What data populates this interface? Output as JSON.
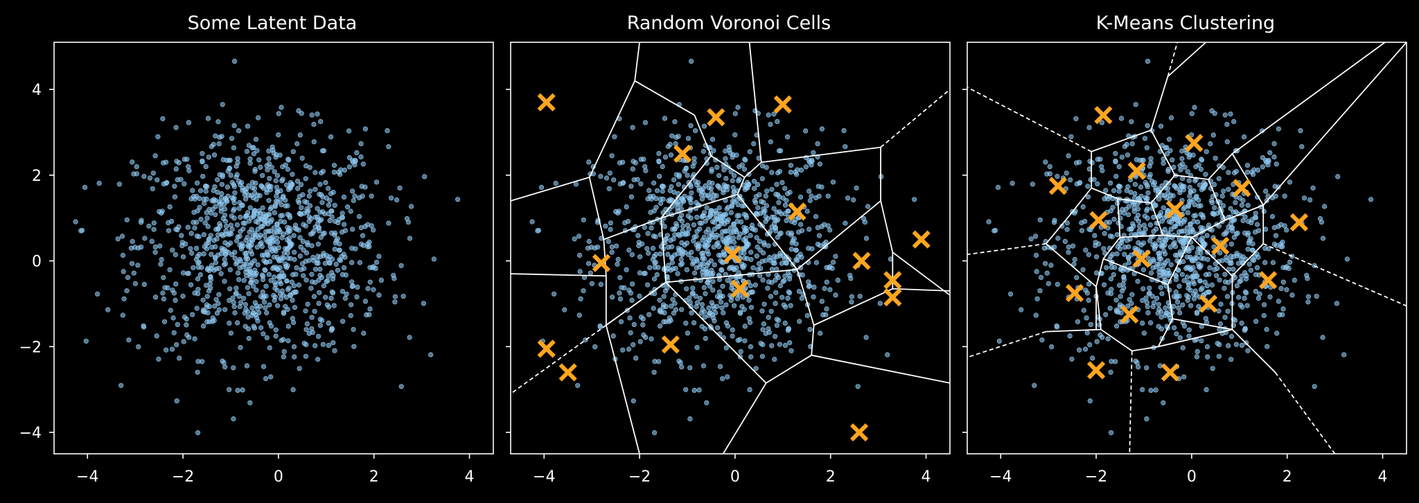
{
  "chart_data": [
    {
      "type": "scatter",
      "title": "Some Latent Data",
      "xlim": [
        -4.7,
        4.5
      ],
      "ylim": [
        -4.5,
        5.1
      ],
      "xticks": [
        -4,
        -2,
        0,
        2,
        4
      ],
      "yticks": [
        -4,
        -2,
        0,
        2,
        4
      ],
      "xtick_labels": [
        "−4",
        "−2",
        "0",
        "2",
        "4"
      ],
      "ytick_labels": [
        "−4",
        "−2",
        "0",
        "2",
        "4"
      ],
      "show_ytick_labels": true,
      "point_color": "#8fc8f0",
      "center_color": "#ffa51f",
      "centers": [],
      "solid_edges": [],
      "dashed_edges": []
    },
    {
      "type": "scatter",
      "title": "Random Voronoi Cells",
      "xlim": [
        -4.7,
        4.5
      ],
      "ylim": [
        -4.5,
        5.1
      ],
      "xticks": [
        -4,
        -2,
        0,
        2,
        4
      ],
      "yticks": [
        -4,
        -2,
        0,
        2,
        4
      ],
      "xtick_labels": [
        "−4",
        "−2",
        "0",
        "2",
        "4"
      ],
      "ytick_labels": [],
      "show_ytick_labels": false,
      "point_color": "#8fc8f0",
      "center_color": "#ffa51f",
      "centers": [
        [
          -3.95,
          3.7
        ],
        [
          -0.4,
          3.35
        ],
        [
          1.0,
          3.65
        ],
        [
          -1.1,
          2.5
        ],
        [
          1.3,
          1.15
        ],
        [
          -2.8,
          -0.05
        ],
        [
          -0.05,
          0.15
        ],
        [
          0.1,
          -0.65
        ],
        [
          2.65,
          0.0
        ],
        [
          3.9,
          0.5
        ],
        [
          3.3,
          -0.45
        ],
        [
          3.3,
          -0.85
        ],
        [
          -3.95,
          -2.05
        ],
        [
          -3.5,
          -2.6
        ],
        [
          -1.35,
          -1.95
        ],
        [
          2.6,
          -4.0
        ]
      ],
      "solid_edges": [
        [
          [
            -2.0,
            5.1
          ],
          [
            -2.1,
            4.2
          ]
        ],
        [
          [
            -2.1,
            4.2
          ],
          [
            -0.85,
            3.4
          ]
        ],
        [
          [
            -2.1,
            4.2
          ],
          [
            -3.05,
            1.95
          ]
        ],
        [
          [
            -3.05,
            1.95
          ],
          [
            -4.7,
            1.4
          ]
        ],
        [
          [
            -3.05,
            1.95
          ],
          [
            -2.75,
            0.5
          ]
        ],
        [
          [
            -0.85,
            3.4
          ],
          [
            -0.5,
            2.45
          ]
        ],
        [
          [
            0.3,
            5.1
          ],
          [
            0.55,
            2.3
          ]
        ],
        [
          [
            0.55,
            2.3
          ],
          [
            3.05,
            2.65
          ]
        ],
        [
          [
            0.55,
            2.3
          ],
          [
            0.2,
            1.95
          ]
        ],
        [
          [
            -0.5,
            2.45
          ],
          [
            0.2,
            1.95
          ]
        ],
        [
          [
            -0.5,
            2.45
          ],
          [
            -1.55,
            1.0
          ]
        ],
        [
          [
            0.2,
            1.95
          ],
          [
            0.05,
            1.55
          ]
        ],
        [
          [
            0.05,
            1.55
          ],
          [
            -1.55,
            1.0
          ]
        ],
        [
          [
            0.05,
            1.55
          ],
          [
            1.3,
            -0.2
          ]
        ],
        [
          [
            -1.55,
            1.0
          ],
          [
            -2.75,
            0.5
          ]
        ],
        [
          [
            -1.55,
            1.0
          ],
          [
            -1.45,
            -0.5
          ]
        ],
        [
          [
            -2.75,
            0.5
          ],
          [
            -2.7,
            -0.35
          ]
        ],
        [
          [
            -2.7,
            -0.35
          ],
          [
            -4.7,
            -0.3
          ]
        ],
        [
          [
            -2.7,
            -0.35
          ],
          [
            -2.7,
            -1.5
          ]
        ],
        [
          [
            -2.7,
            -1.5
          ],
          [
            -1.45,
            -0.5
          ]
        ],
        [
          [
            -1.45,
            -0.5
          ],
          [
            1.3,
            -0.2
          ]
        ],
        [
          [
            1.3,
            -0.2
          ],
          [
            1.65,
            -1.5
          ]
        ],
        [
          [
            1.3,
            -0.2
          ],
          [
            3.05,
            1.4
          ]
        ],
        [
          [
            3.05,
            2.65
          ],
          [
            3.05,
            1.4
          ]
        ],
        [
          [
            3.05,
            1.4
          ],
          [
            3.3,
            0.2
          ]
        ],
        [
          [
            3.3,
            0.2
          ],
          [
            4.5,
            -0.8
          ]
        ],
        [
          [
            3.3,
            0.2
          ],
          [
            3.3,
            -0.65
          ]
        ],
        [
          [
            3.3,
            -0.65
          ],
          [
            4.5,
            -0.7
          ]
        ],
        [
          [
            3.3,
            -0.65
          ],
          [
            1.65,
            -1.5
          ]
        ],
        [
          [
            1.65,
            -1.5
          ],
          [
            1.6,
            -2.2
          ]
        ],
        [
          [
            -2.7,
            -1.5
          ],
          [
            -1.45,
            -0.5
          ]
        ],
        [
          [
            -2.7,
            -1.5
          ],
          [
            -2.0,
            -4.5
          ]
        ],
        [
          [
            1.6,
            -2.2
          ],
          [
            0.65,
            -2.85
          ]
        ],
        [
          [
            1.6,
            -2.2
          ],
          [
            4.5,
            -2.85
          ]
        ],
        [
          [
            0.65,
            -2.85
          ],
          [
            -0.25,
            -4.5
          ]
        ],
        [
          [
            0.65,
            -2.85
          ],
          [
            -1.45,
            -0.5
          ]
        ]
      ],
      "dashed_edges": [
        [
          [
            3.05,
            2.65
          ],
          [
            4.5,
            4.0
          ]
        ],
        [
          [
            -2.7,
            -1.5
          ],
          [
            -4.7,
            -3.1
          ]
        ]
      ]
    },
    {
      "type": "scatter",
      "title": "K-Means Clustering",
      "xlim": [
        -4.7,
        4.5
      ],
      "ylim": [
        -4.5,
        5.1
      ],
      "xticks": [
        -4,
        -2,
        0,
        2,
        4
      ],
      "yticks": [
        -4,
        -2,
        0,
        2,
        4
      ],
      "xtick_labels": [
        "−4",
        "−2",
        "0",
        "2",
        "4"
      ],
      "ytick_labels": [],
      "show_ytick_labels": false,
      "point_color": "#8fc8f0",
      "center_color": "#ffa51f",
      "centers": [
        [
          -1.85,
          3.4
        ],
        [
          0.05,
          2.75
        ],
        [
          -1.15,
          2.1
        ],
        [
          -2.8,
          1.75
        ],
        [
          1.05,
          1.7
        ],
        [
          -1.95,
          0.95
        ],
        [
          -0.35,
          1.2
        ],
        [
          2.25,
          0.9
        ],
        [
          0.6,
          0.35
        ],
        [
          -1.05,
          0.05
        ],
        [
          -2.45,
          -0.75
        ],
        [
          1.6,
          -0.45
        ],
        [
          -1.3,
          -1.25
        ],
        [
          0.35,
          -1.0
        ],
        [
          -2.0,
          -2.55
        ],
        [
          -0.45,
          -2.6
        ]
      ],
      "solid_edges": [
        [
          [
            -2.1,
            2.55
          ],
          [
            -0.85,
            3.05
          ]
        ],
        [
          [
            -0.85,
            3.05
          ],
          [
            -0.5,
            4.3
          ]
        ],
        [
          [
            -0.5,
            4.3
          ],
          [
            0.3,
            5.1
          ]
        ],
        [
          [
            -0.85,
            3.05
          ],
          [
            -0.35,
            2.0
          ]
        ],
        [
          [
            -0.35,
            2.0
          ],
          [
            0.35,
            1.9
          ]
        ],
        [
          [
            0.35,
            1.9
          ],
          [
            0.85,
            2.5
          ]
        ],
        [
          [
            0.85,
            2.5
          ],
          [
            4.05,
            5.1
          ]
        ],
        [
          [
            0.85,
            2.5
          ],
          [
            1.5,
            1.3
          ]
        ],
        [
          [
            1.5,
            1.3
          ],
          [
            4.5,
            5.1
          ]
        ],
        [
          [
            1.5,
            1.3
          ],
          [
            0.7,
            0.95
          ]
        ],
        [
          [
            0.35,
            1.9
          ],
          [
            0.7,
            0.95
          ]
        ],
        [
          [
            0.7,
            0.95
          ],
          [
            0.0,
            0.55
          ]
        ],
        [
          [
            -0.35,
            2.0
          ],
          [
            -0.85,
            1.35
          ]
        ],
        [
          [
            -0.85,
            1.35
          ],
          [
            -1.55,
            1.45
          ]
        ],
        [
          [
            -1.55,
            1.45
          ],
          [
            -2.1,
            1.7
          ]
        ],
        [
          [
            -2.1,
            2.55
          ],
          [
            -2.1,
            1.7
          ]
        ],
        [
          [
            -2.1,
            1.7
          ],
          [
            -2.6,
            1.0
          ]
        ],
        [
          [
            -2.6,
            1.0
          ],
          [
            -3.05,
            0.4
          ]
        ],
        [
          [
            -1.55,
            1.45
          ],
          [
            -1.5,
            0.55
          ]
        ],
        [
          [
            -0.85,
            1.35
          ],
          [
            -0.6,
            0.6
          ]
        ],
        [
          [
            -0.6,
            0.6
          ],
          [
            0.0,
            0.55
          ]
        ],
        [
          [
            -0.6,
            0.6
          ],
          [
            -1.5,
            0.55
          ]
        ],
        [
          [
            -1.5,
            0.55
          ],
          [
            -1.85,
            0.05
          ]
        ],
        [
          [
            -1.85,
            0.05
          ],
          [
            -2.0,
            -0.6
          ]
        ],
        [
          [
            -1.85,
            0.05
          ],
          [
            -0.5,
            -0.55
          ]
        ],
        [
          [
            0.0,
            0.55
          ],
          [
            -0.5,
            -0.55
          ]
        ],
        [
          [
            -0.5,
            -0.55
          ],
          [
            -0.4,
            -1.35
          ]
        ],
        [
          [
            -0.4,
            -1.35
          ],
          [
            -0.7,
            -2.0
          ]
        ],
        [
          [
            -2.0,
            -0.6
          ],
          [
            -1.9,
            -1.6
          ]
        ],
        [
          [
            -1.9,
            -1.6
          ],
          [
            -1.25,
            -2.1
          ]
        ],
        [
          [
            -1.25,
            -2.1
          ],
          [
            -0.7,
            -2.0
          ]
        ],
        [
          [
            -0.4,
            -1.35
          ],
          [
            0.85,
            -1.6
          ]
        ],
        [
          [
            0.0,
            0.55
          ],
          [
            0.85,
            -0.35
          ]
        ],
        [
          [
            0.85,
            -0.35
          ],
          [
            0.85,
            -1.6
          ]
        ],
        [
          [
            0.85,
            -1.6
          ],
          [
            1.75,
            -2.6
          ]
        ],
        [
          [
            0.85,
            -1.6
          ],
          [
            -0.7,
            -2.0
          ]
        ],
        [
          [
            1.5,
            1.3
          ],
          [
            1.5,
            0.4
          ]
        ],
        [
          [
            1.5,
            0.4
          ],
          [
            0.85,
            -0.35
          ]
        ],
        [
          [
            -1.9,
            -1.6
          ],
          [
            -3.05,
            -1.65
          ]
        ],
        [
          [
            -3.05,
            0.4
          ],
          [
            -2.0,
            -0.6
          ]
        ],
        [
          [
            -2.0,
            -0.6
          ],
          [
            -2.0,
            -1.6
          ]
        ]
      ],
      "dashed_edges": [
        [
          [
            -2.1,
            2.55
          ],
          [
            -4.7,
            4.05
          ]
        ],
        [
          [
            -3.05,
            0.4
          ],
          [
            -4.7,
            0.15
          ]
        ],
        [
          [
            -3.05,
            -1.65
          ],
          [
            -4.7,
            -2.25
          ]
        ],
        [
          [
            -1.25,
            -2.1
          ],
          [
            -1.3,
            -4.5
          ]
        ],
        [
          [
            1.75,
            -2.6
          ],
          [
            3.0,
            -4.5
          ]
        ],
        [
          [
            1.5,
            0.4
          ],
          [
            4.5,
            -1.05
          ]
        ],
        [
          [
            -0.5,
            4.3
          ],
          [
            -0.3,
            5.1
          ]
        ]
      ]
    }
  ]
}
